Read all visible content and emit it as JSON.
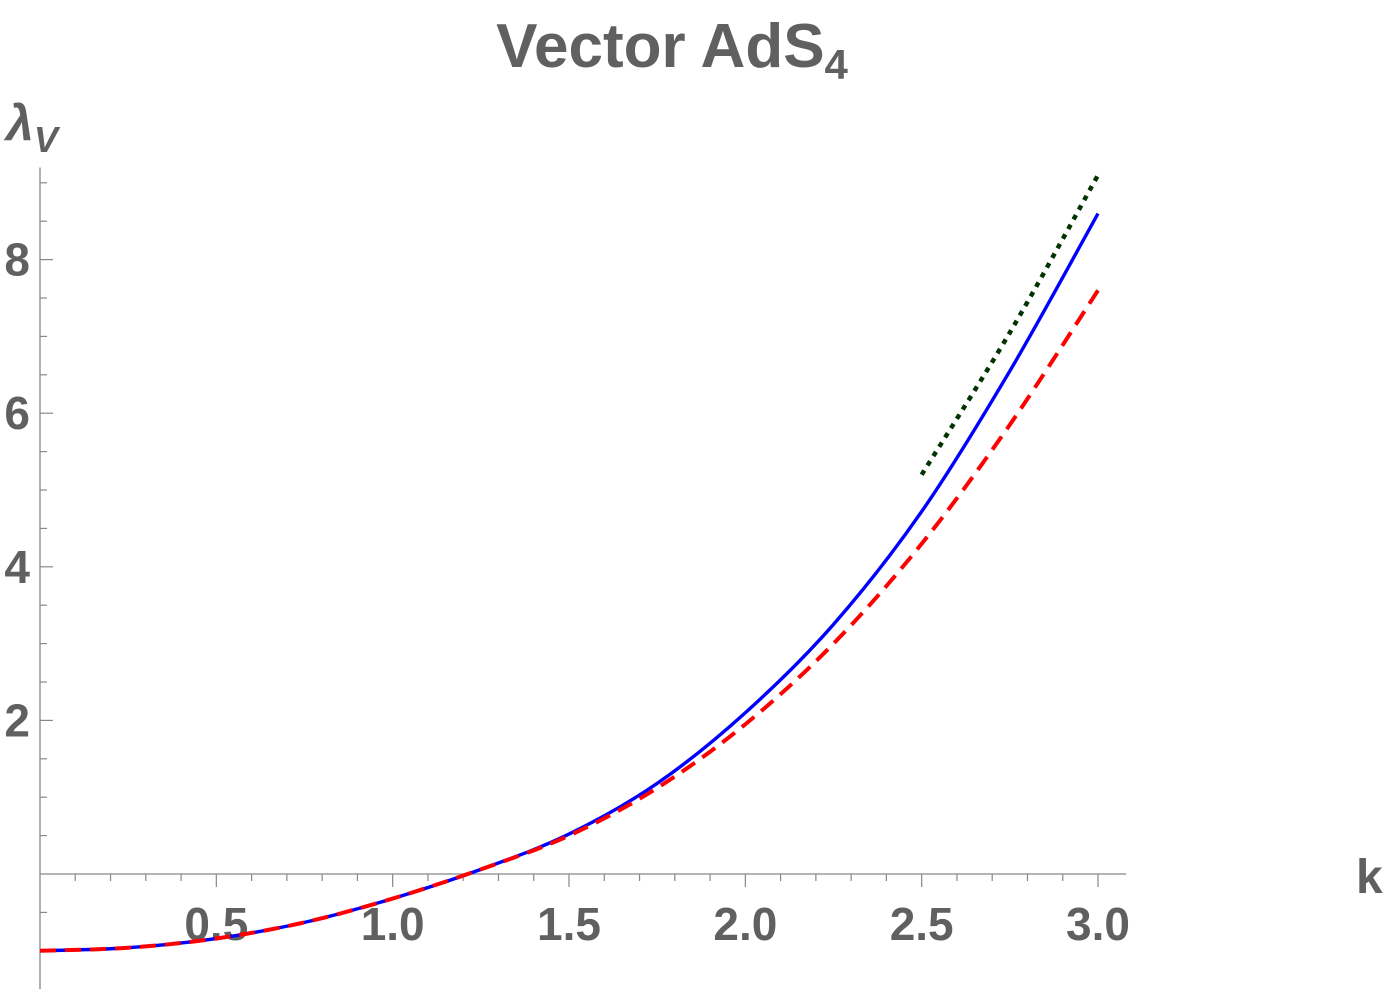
{
  "chart_data": {
    "type": "line",
    "title": "Vector AdS",
    "title_subscript": "4",
    "xlabel": "k",
    "ylabel": "λ",
    "ylabel_subscript": "V",
    "xlim": [
      0,
      3.08
    ],
    "ylim": [
      -1.5,
      9.2
    ],
    "x_ticks": [
      {
        "value": 0.5,
        "label": "0.5"
      },
      {
        "value": 1.0,
        "label": "1.0"
      },
      {
        "value": 1.5,
        "label": "1.5"
      },
      {
        "value": 2.0,
        "label": "2.0"
      },
      {
        "value": 2.5,
        "label": "2.5"
      },
      {
        "value": 3.0,
        "label": "3.0"
      }
    ],
    "y_ticks": [
      {
        "value": 2,
        "label": "2"
      },
      {
        "value": 4,
        "label": "4"
      },
      {
        "value": 6,
        "label": "6"
      },
      {
        "value": 8,
        "label": "8"
      }
    ],
    "grid": false,
    "series": [
      {
        "style": "solid",
        "color": "#0000ff",
        "x": [
          0,
          0.25,
          0.5,
          0.75,
          1.0,
          1.25,
          1.5,
          1.75,
          2.0,
          2.25,
          2.5,
          2.75,
          3.0
        ],
        "y": [
          -1.0,
          -0.96,
          -0.84,
          -0.63,
          -0.32,
          0.06,
          0.52,
          1.18,
          2.1,
          3.25,
          4.72,
          6.55,
          8.6
        ]
      },
      {
        "style": "dashed",
        "color": "#ff0000",
        "x": [
          0,
          0.25,
          0.5,
          0.75,
          1.0,
          1.25,
          1.5,
          1.75,
          2.0,
          2.25,
          2.5,
          2.75,
          3.0
        ],
        "y": [
          -1.0,
          -0.96,
          -0.84,
          -0.63,
          -0.32,
          0.06,
          0.5,
          1.12,
          1.95,
          3.0,
          4.3,
          5.85,
          7.6
        ]
      },
      {
        "style": "dotted",
        "color": "#003300",
        "x": [
          2.5,
          2.75,
          3.0
        ],
        "y": [
          5.2,
          7.05,
          9.1
        ]
      }
    ]
  }
}
